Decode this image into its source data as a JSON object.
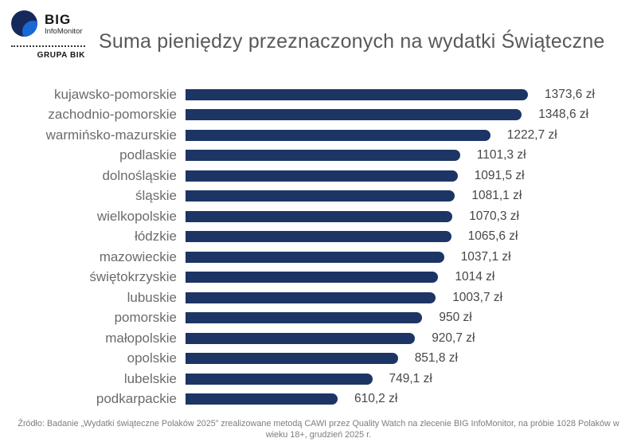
{
  "logo": {
    "brand": "BIG",
    "sub": "InfoMonitor",
    "group": "GRUPA BIK"
  },
  "title": "Suma pieniędzy przeznaczonych na wydatki Świąteczne",
  "source_note": "Źródło: Badanie „Wydatki świąteczne Polaków 2025” zrealizowane metodą CAWI przez Quality Watch na zlecenie BIG InfoMonitor, na próbie 1028 Polaków w wieku 18+, grudzień 2025 r.",
  "colors": {
    "bar": "#1c3564",
    "category_label": "#6b6b6b",
    "value_label": "#474747",
    "title": "#595959",
    "footer": "#7d7d7d",
    "logo_dark_blue": "#16295b",
    "logo_light_blue": "#1a67d6"
  },
  "chart_data": {
    "type": "bar",
    "orientation": "horizontal",
    "title": "Suma pieniędzy przeznaczonych na wydatki Świąteczne",
    "unit": "zł",
    "categories": [
      "kujawsko-pomorskie",
      "zachodnio-pomorskie",
      "warmińsko-mazurskie",
      "podlaskie",
      "dolnośląskie",
      "śląskie",
      "wielkopolskie",
      "łódzkie",
      "mazowieckie",
      "świętokrzyskie",
      "lubuskie",
      "pomorskie",
      "małopolskie",
      "opolskie",
      "lubelskie",
      "podkarpackie"
    ],
    "values": [
      1373.6,
      1348.6,
      1222.7,
      1101.3,
      1091.5,
      1081.1,
      1070.3,
      1065.6,
      1037.1,
      1014,
      1003.7,
      950,
      920.7,
      851.8,
      749.1,
      610.2
    ],
    "value_labels": [
      "1373,6 zł",
      "1348,6 zł",
      "1222,7 zł",
      "1101,3 zł",
      "1091,5 zł",
      "1081,1 zł",
      "1070,3 zł",
      "1065,6 zł",
      "1037,1 zł",
      "1014 zł",
      "1003,7 zł",
      "950 zł",
      "920,7 zł",
      "851,8 zł",
      "749,1 zł",
      "610,2 zł"
    ],
    "xlim": [
      0,
      1400
    ],
    "grid": false,
    "legend": false,
    "bar_color": "#1c3564"
  }
}
